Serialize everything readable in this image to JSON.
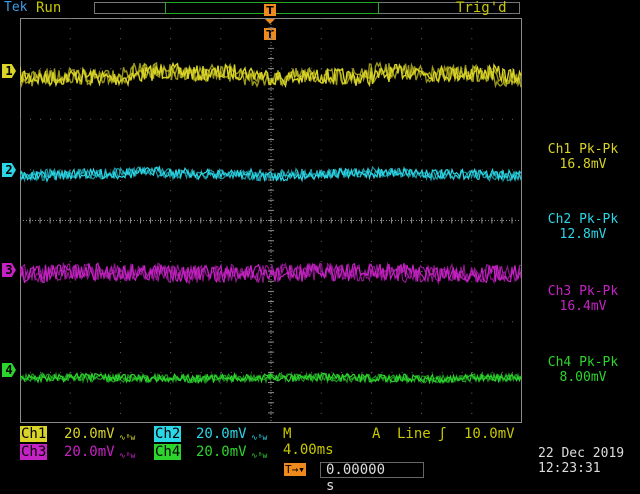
{
  "header": {
    "brand": "Tek",
    "acq_state": "Run",
    "trigger_status": "Trig'd",
    "trigger_marker": "T"
  },
  "colors": {
    "ch1": "#d9d427",
    "ch2": "#2bd6e6",
    "ch3": "#c522c3",
    "ch4": "#2cd42c",
    "text": "#c8c800",
    "grid": "#808080"
  },
  "channels": [
    {
      "marker": "1",
      "meas_label": "Ch1 Pk-Pk",
      "meas_value": "16.8mV",
      "scale_label": "Ch1",
      "scale": "20.0mV"
    },
    {
      "marker": "2",
      "meas_label": "Ch2 Pk-Pk",
      "meas_value": "12.8mV",
      "scale_label": "Ch2",
      "scale": "20.0mV"
    },
    {
      "marker": "3",
      "meas_label": "Ch3 Pk-Pk",
      "meas_value": "16.4mV",
      "scale_label": "Ch3",
      "scale": "20.0mV"
    },
    {
      "marker": "4",
      "meas_label": "Ch4 Pk-Pk",
      "meas_value": "8.00mV",
      "scale_label": "Ch4",
      "scale": "20.0mV"
    }
  ],
  "bw_symbol": "∿ᴮw",
  "timebase": "M 4.00ms",
  "trigger": {
    "source_label": "A",
    "source": "Line",
    "slope_symbol": "ʃ",
    "level": "10.0mV"
  },
  "horizontal_position": {
    "symbol": "T→▾",
    "value": "0.00000 s"
  },
  "datetime": {
    "date": "22 Dec  2019",
    "time": "12:23:31"
  }
}
